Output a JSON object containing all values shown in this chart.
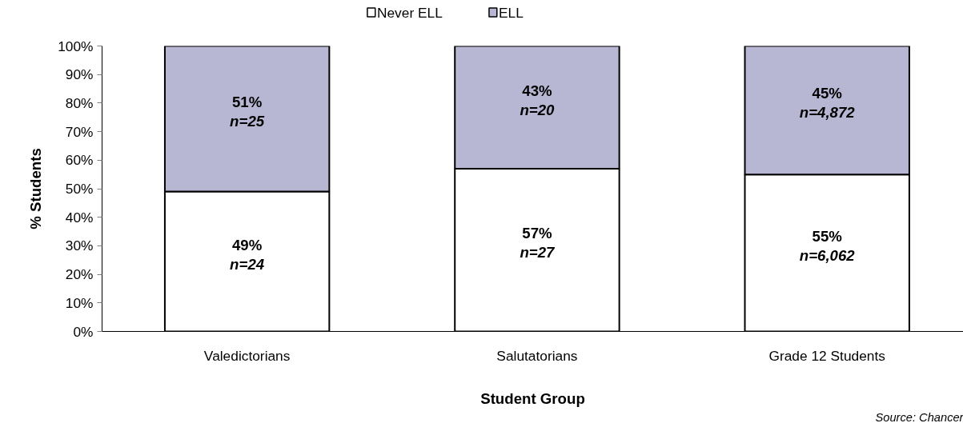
{
  "chart_data": {
    "type": "bar",
    "stacked": true,
    "ylabel": "% Students",
    "xlabel": "Student Group",
    "categories": [
      "Valedictorians",
      "Salutatorians",
      "Grade 12 Students"
    ],
    "series": [
      {
        "name": "Never ELL",
        "color": "#ffffff",
        "values": [
          49,
          57,
          55
        ],
        "value_labels": [
          "49%\nn=24",
          "57%\nn=27",
          "55%\nn=6,062"
        ]
      },
      {
        "name": "ELL",
        "color": "#b7b7d4",
        "values": [
          51,
          43,
          45
        ],
        "value_labels": [
          "51%\nn=25",
          "43%\nn=20",
          "45%\nn=4,872"
        ]
      }
    ],
    "ylim": [
      0,
      100
    ],
    "yticks": [
      {
        "value": 0,
        "label": "0%"
      },
      {
        "value": 10,
        "label": "10%"
      },
      {
        "value": 20,
        "label": "20%"
      },
      {
        "value": 30,
        "label": "30%"
      },
      {
        "value": 40,
        "label": "40%"
      },
      {
        "value": 50,
        "label": "50%"
      },
      {
        "value": 60,
        "label": "60%"
      },
      {
        "value": 70,
        "label": "70%"
      },
      {
        "value": 80,
        "label": "80%"
      },
      {
        "value": 90,
        "label": "90%"
      },
      {
        "value": 100,
        "label": "100%"
      }
    ],
    "grid": false,
    "legend": "top",
    "annotations": [
      "Source: Chancer"
    ]
  }
}
